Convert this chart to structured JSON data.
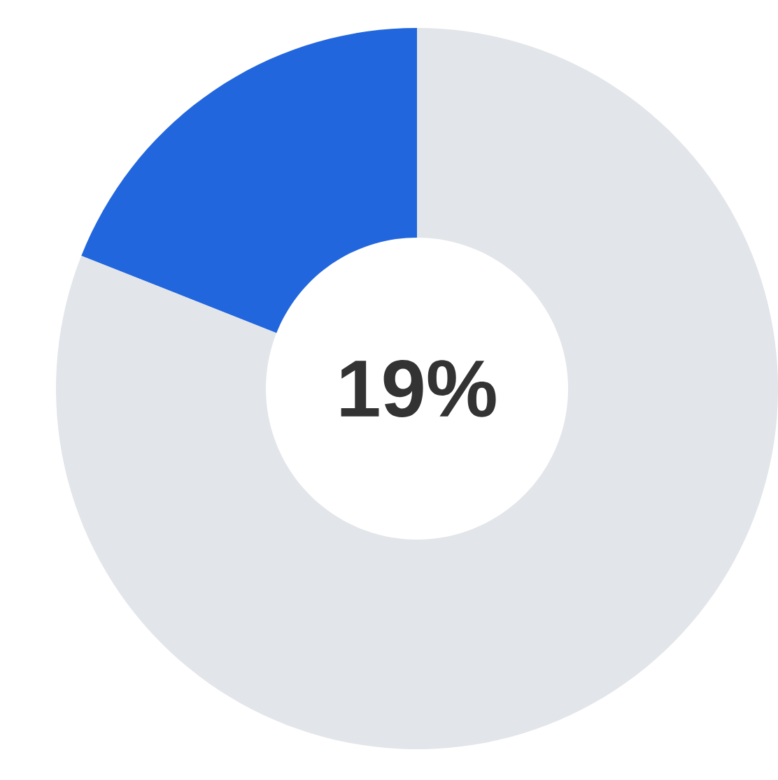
{
  "chart_data": {
    "type": "donut",
    "categories": [
      null,
      null
    ],
    "values": [
      19,
      81
    ],
    "colors": [
      "#2266dd",
      "#e2e5e9"
    ],
    "annotations": [
      "19%"
    ]
  }
}
